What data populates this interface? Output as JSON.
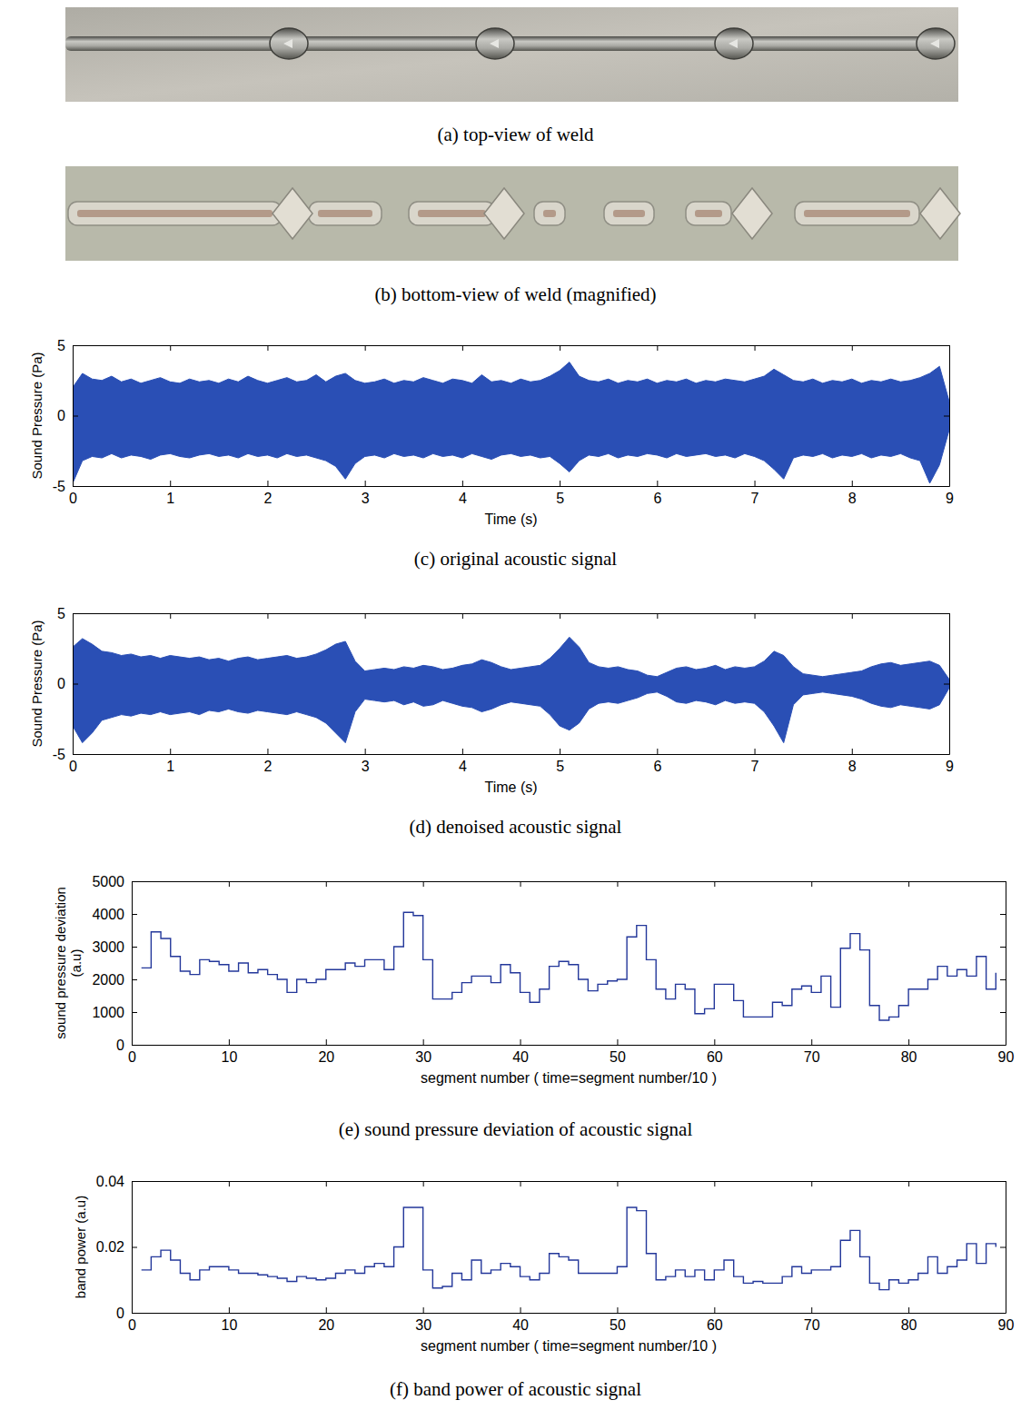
{
  "figures": [
    {
      "caption": "(a) top-view of weld"
    },
    {
      "caption": "(b) bottom-view of weld (magnified)"
    }
  ],
  "chart_data": [
    {
      "type": "band",
      "caption": "(c) original acoustic signal",
      "x_label": "Time (s)",
      "y_label": "Sound Pressure (Pa)",
      "color": "#2a4fb5",
      "xlim": [
        0,
        9
      ],
      "xticks": [
        0,
        1,
        2,
        3,
        4,
        5,
        6,
        7,
        8,
        9
      ],
      "ylim": [
        -5,
        5
      ],
      "yticks": [
        -5,
        0,
        5
      ],
      "x": [
        0,
        0.1,
        0.2,
        0.3,
        0.4,
        0.5,
        0.6,
        0.7,
        0.8,
        0.9,
        1,
        1.1,
        1.2,
        1.3,
        1.4,
        1.5,
        1.6,
        1.7,
        1.8,
        1.9,
        2,
        2.1,
        2.2,
        2.3,
        2.4,
        2.5,
        2.6,
        2.7,
        2.8,
        2.9,
        3,
        3.1,
        3.2,
        3.3,
        3.4,
        3.5,
        3.6,
        3.7,
        3.8,
        3.9,
        4,
        4.1,
        4.2,
        4.3,
        4.4,
        4.5,
        4.6,
        4.7,
        4.8,
        4.9,
        5,
        5.1,
        5.2,
        5.3,
        5.4,
        5.5,
        5.6,
        5.7,
        5.8,
        5.9,
        6,
        6.1,
        6.2,
        6.3,
        6.4,
        6.5,
        6.6,
        6.7,
        6.8,
        6.9,
        7,
        7.1,
        7.2,
        7.3,
        7.4,
        7.5,
        7.6,
        7.7,
        7.8,
        7.9,
        8,
        8.1,
        8.2,
        8.3,
        8.4,
        8.5,
        8.6,
        8.7,
        8.8,
        8.9,
        9
      ],
      "upper": [
        2.0,
        3.0,
        2.6,
        2.5,
        2.8,
        2.4,
        2.6,
        2.3,
        2.5,
        2.7,
        2.4,
        2.3,
        2.6,
        2.4,
        2.5,
        2.3,
        2.6,
        2.4,
        2.8,
        2.5,
        2.3,
        2.5,
        2.7,
        2.4,
        2.5,
        2.9,
        2.4,
        2.8,
        3.0,
        2.5,
        2.3,
        2.4,
        2.6,
        2.3,
        2.5,
        2.4,
        2.7,
        2.5,
        2.3,
        2.6,
        2.5,
        2.3,
        2.9,
        2.4,
        2.5,
        2.3,
        2.6,
        2.4,
        2.5,
        2.8,
        3.2,
        3.8,
        2.8,
        2.5,
        2.4,
        2.6,
        2.3,
        2.5,
        2.4,
        2.6,
        2.3,
        2.5,
        2.4,
        2.6,
        2.3,
        2.5,
        2.4,
        2.6,
        2.5,
        2.4,
        2.6,
        2.8,
        3.3,
        2.9,
        2.5,
        2.4,
        2.6,
        2.3,
        2.5,
        2.4,
        2.6,
        2.3,
        2.5,
        2.4,
        2.6,
        2.4,
        2.5,
        2.7,
        3.0,
        3.5,
        1.0
      ],
      "lower": [
        -4.8,
        -3.2,
        -2.9,
        -3.0,
        -2.7,
        -3.0,
        -2.8,
        -2.9,
        -3.1,
        -2.8,
        -2.7,
        -2.9,
        -3.0,
        -2.8,
        -2.7,
        -2.9,
        -2.8,
        -3.0,
        -2.7,
        -2.9,
        -2.8,
        -3.0,
        -2.7,
        -2.9,
        -2.8,
        -3.0,
        -3.2,
        -3.6,
        -4.5,
        -3.4,
        -2.9,
        -2.8,
        -3.0,
        -2.7,
        -2.9,
        -2.8,
        -3.0,
        -2.7,
        -2.9,
        -2.8,
        -3.0,
        -2.7,
        -2.9,
        -3.1,
        -2.8,
        -2.7,
        -2.9,
        -2.8,
        -3.0,
        -2.9,
        -3.4,
        -4.0,
        -3.2,
        -2.8,
        -2.9,
        -2.7,
        -3.0,
        -2.8,
        -2.9,
        -2.7,
        -2.8,
        -3.0,
        -2.7,
        -2.9,
        -2.8,
        -2.7,
        -2.9,
        -2.8,
        -3.0,
        -2.7,
        -2.9,
        -3.2,
        -3.8,
        -4.5,
        -3.0,
        -2.8,
        -2.9,
        -2.7,
        -3.0,
        -2.8,
        -2.9,
        -2.7,
        -3.0,
        -2.8,
        -2.9,
        -2.7,
        -3.0,
        -3.2,
        -4.8,
        -3.5,
        -1.0
      ]
    },
    {
      "type": "band",
      "caption": "(d) denoised acoustic signal",
      "x_label": "Time (s)",
      "y_label": "Sound Pressure (Pa)",
      "color": "#2a4fb5",
      "xlim": [
        0,
        9
      ],
      "xticks": [
        0,
        1,
        2,
        3,
        4,
        5,
        6,
        7,
        8,
        9
      ],
      "ylim": [
        -5,
        5
      ],
      "yticks": [
        -5,
        0,
        5
      ],
      "x": [
        0,
        0.1,
        0.2,
        0.3,
        0.4,
        0.5,
        0.6,
        0.7,
        0.8,
        0.9,
        1,
        1.1,
        1.2,
        1.3,
        1.4,
        1.5,
        1.6,
        1.7,
        1.8,
        1.9,
        2,
        2.1,
        2.2,
        2.3,
        2.4,
        2.5,
        2.6,
        2.7,
        2.8,
        2.9,
        3,
        3.1,
        3.2,
        3.3,
        3.4,
        3.5,
        3.6,
        3.7,
        3.8,
        3.9,
        4,
        4.1,
        4.2,
        4.3,
        4.4,
        4.5,
        4.6,
        4.7,
        4.8,
        4.9,
        5,
        5.1,
        5.2,
        5.3,
        5.4,
        5.5,
        5.6,
        5.7,
        5.8,
        5.9,
        6,
        6.1,
        6.2,
        6.3,
        6.4,
        6.5,
        6.6,
        6.7,
        6.8,
        6.9,
        7,
        7.1,
        7.2,
        7.3,
        7.4,
        7.5,
        7.6,
        7.7,
        7.8,
        7.9,
        8,
        8.1,
        8.2,
        8.3,
        8.4,
        8.5,
        8.6,
        8.7,
        8.8,
        8.9,
        9
      ],
      "upper": [
        2.6,
        3.2,
        2.8,
        2.3,
        2.2,
        2.0,
        2.1,
        1.9,
        2.0,
        1.8,
        2.0,
        1.9,
        1.8,
        1.9,
        1.7,
        1.8,
        1.6,
        1.8,
        1.9,
        1.7,
        1.8,
        1.9,
        2.0,
        1.8,
        1.9,
        2.1,
        2.4,
        2.8,
        3.0,
        1.6,
        0.9,
        1.0,
        1.1,
        1.0,
        1.2,
        1.1,
        1.3,
        1.2,
        1.0,
        1.1,
        1.3,
        1.4,
        1.7,
        1.5,
        1.2,
        1.0,
        1.1,
        1.2,
        1.3,
        1.8,
        2.5,
        3.3,
        2.6,
        1.5,
        1.2,
        1.1,
        1.2,
        1.0,
        0.9,
        0.6,
        0.5,
        0.8,
        1.1,
        1.2,
        1.0,
        1.1,
        1.3,
        1.0,
        1.2,
        1.1,
        1.2,
        1.6,
        2.3,
        2.0,
        1.2,
        0.7,
        0.6,
        0.5,
        0.6,
        0.7,
        0.8,
        0.9,
        1.2,
        1.4,
        1.5,
        1.3,
        1.4,
        1.5,
        1.6,
        1.3,
        0.3
      ],
      "lower": [
        -3.0,
        -4.2,
        -3.5,
        -2.6,
        -2.4,
        -2.2,
        -2.3,
        -2.1,
        -2.2,
        -2.0,
        -2.2,
        -2.1,
        -2.0,
        -2.2,
        -1.9,
        -2.0,
        -1.8,
        -2.0,
        -2.1,
        -1.9,
        -2.0,
        -2.1,
        -2.2,
        -2.0,
        -2.2,
        -2.4,
        -2.8,
        -3.5,
        -4.2,
        -2.0,
        -1.1,
        -1.2,
        -1.3,
        -1.2,
        -1.5,
        -1.3,
        -1.6,
        -1.5,
        -1.2,
        -1.4,
        -1.6,
        -1.7,
        -2.0,
        -1.8,
        -1.5,
        -1.3,
        -1.4,
        -1.5,
        -1.6,
        -2.2,
        -3.0,
        -3.3,
        -2.8,
        -1.8,
        -1.4,
        -1.3,
        -1.4,
        -1.2,
        -1.0,
        -0.7,
        -0.6,
        -0.9,
        -1.3,
        -1.4,
        -1.2,
        -1.3,
        -1.5,
        -1.2,
        -1.4,
        -1.3,
        -1.4,
        -2.0,
        -3.0,
        -4.2,
        -1.5,
        -0.8,
        -0.7,
        -0.6,
        -0.7,
        -0.8,
        -0.9,
        -1.1,
        -1.4,
        -1.6,
        -1.7,
        -1.5,
        -1.6,
        -1.7,
        -1.8,
        -1.5,
        -0.3
      ]
    },
    {
      "type": "step",
      "caption": "(e) sound pressure deviation of acoustic signal",
      "x_label": "segment number ( time=segment number/10 )",
      "y_label": "sound pressure deviation (a.u)",
      "color": "#23379a",
      "xlim": [
        0,
        90
      ],
      "xticks": [
        0,
        10,
        20,
        30,
        40,
        50,
        60,
        70,
        80,
        90
      ],
      "ylim": [
        0,
        5000
      ],
      "yticks": [
        0,
        1000,
        2000,
        3000,
        4000,
        5000
      ],
      "x": [
        1,
        2,
        3,
        4,
        5,
        6,
        7,
        8,
        9,
        10,
        11,
        12,
        13,
        14,
        15,
        16,
        17,
        18,
        19,
        20,
        21,
        22,
        23,
        24,
        25,
        26,
        27,
        28,
        29,
        30,
        31,
        32,
        33,
        34,
        35,
        36,
        37,
        38,
        39,
        40,
        41,
        42,
        43,
        44,
        45,
        46,
        47,
        48,
        49,
        50,
        51,
        52,
        53,
        54,
        55,
        56,
        57,
        58,
        59,
        60,
        61,
        62,
        63,
        64,
        65,
        66,
        67,
        68,
        69,
        70,
        71,
        72,
        73,
        74,
        75,
        76,
        77,
        78,
        79,
        80,
        81,
        82,
        83,
        84,
        85,
        86,
        87,
        88,
        89
      ],
      "values": [
        2350,
        3450,
        3250,
        2700,
        2250,
        2150,
        2600,
        2550,
        2450,
        2250,
        2500,
        2200,
        2300,
        2150,
        2000,
        1600,
        2000,
        1900,
        2000,
        2300,
        2300,
        2500,
        2400,
        2600,
        2600,
        2300,
        3000,
        4050,
        3950,
        2600,
        1400,
        1400,
        1600,
        1900,
        2100,
        2100,
        1900,
        2450,
        2200,
        1600,
        1300,
        1700,
        2400,
        2550,
        2450,
        2000,
        1650,
        1850,
        1950,
        2000,
        3300,
        3650,
        2600,
        1700,
        1400,
        1850,
        1700,
        950,
        1100,
        1850,
        1850,
        1350,
        850,
        850,
        850,
        1300,
        1200,
        1700,
        1800,
        1600,
        2100,
        1150,
        2950,
        3400,
        2900,
        1200,
        750,
        850,
        1200,
        1700,
        1700,
        2000,
        2400,
        2100,
        2300,
        2100,
        2700,
        1700,
        2200
      ]
    },
    {
      "type": "step",
      "caption": "(f) band power of acoustic signal",
      "x_label": "segment number ( time=segment number/10 )",
      "y_label": "band power (a.u)",
      "color": "#23379a",
      "xlim": [
        0,
        90
      ],
      "xticks": [
        0,
        10,
        20,
        30,
        40,
        50,
        60,
        70,
        80,
        90
      ],
      "ylim": [
        0,
        0.04
      ],
      "yticks": [
        0,
        0.02,
        0.04
      ],
      "x": [
        1,
        2,
        3,
        4,
        5,
        6,
        7,
        8,
        9,
        10,
        11,
        12,
        13,
        14,
        15,
        16,
        17,
        18,
        19,
        20,
        21,
        22,
        23,
        24,
        25,
        26,
        27,
        28,
        29,
        30,
        31,
        32,
        33,
        34,
        35,
        36,
        37,
        38,
        39,
        40,
        41,
        42,
        43,
        44,
        45,
        46,
        47,
        48,
        49,
        50,
        51,
        52,
        53,
        54,
        55,
        56,
        57,
        58,
        59,
        60,
        61,
        62,
        63,
        64,
        65,
        66,
        67,
        68,
        69,
        70,
        71,
        72,
        73,
        74,
        75,
        76,
        77,
        78,
        79,
        80,
        81,
        82,
        83,
        84,
        85,
        86,
        87,
        88,
        89
      ],
      "values": [
        0.013,
        0.017,
        0.019,
        0.016,
        0.012,
        0.01,
        0.013,
        0.014,
        0.014,
        0.013,
        0.012,
        0.012,
        0.0115,
        0.011,
        0.0105,
        0.0095,
        0.011,
        0.0105,
        0.01,
        0.0105,
        0.012,
        0.013,
        0.012,
        0.014,
        0.015,
        0.014,
        0.02,
        0.032,
        0.032,
        0.013,
        0.0075,
        0.008,
        0.012,
        0.01,
        0.016,
        0.012,
        0.013,
        0.015,
        0.014,
        0.011,
        0.01,
        0.012,
        0.018,
        0.017,
        0.016,
        0.012,
        0.012,
        0.012,
        0.012,
        0.014,
        0.032,
        0.031,
        0.018,
        0.01,
        0.011,
        0.013,
        0.011,
        0.013,
        0.01,
        0.013,
        0.016,
        0.011,
        0.009,
        0.0095,
        0.009,
        0.009,
        0.011,
        0.014,
        0.012,
        0.013,
        0.013,
        0.014,
        0.022,
        0.025,
        0.017,
        0.009,
        0.007,
        0.01,
        0.009,
        0.01,
        0.012,
        0.017,
        0.012,
        0.014,
        0.016,
        0.021,
        0.015,
        0.021,
        0.02
      ]
    }
  ]
}
